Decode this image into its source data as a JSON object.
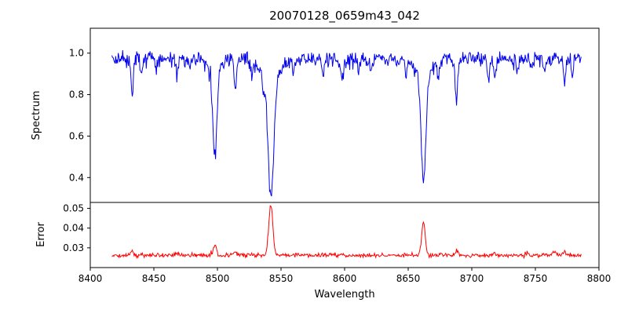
{
  "chart_data": {
    "type": "line",
    "title": "20070128_0659m43_042",
    "xlabel": "Wavelength",
    "x_range": [
      8400,
      8800
    ],
    "x_ticks": [
      8400,
      8450,
      8500,
      8550,
      8600,
      8650,
      8700,
      8750,
      8800
    ],
    "x_tick_labels": [
      "8400",
      "8450",
      "8500",
      "8550",
      "8600",
      "8650",
      "8700",
      "8750",
      "8800"
    ],
    "data_x_start": 8417,
    "data_x_end": 8786,
    "sample_step": 0.5,
    "noise_seed": 42,
    "grid": false,
    "legend": "none",
    "subplots": [
      {
        "name": "spectrum",
        "ylabel": "Spectrum",
        "ylim": [
          0.28,
          1.12
        ],
        "y_ticks": [
          0.4,
          0.6,
          0.8,
          1.0
        ],
        "y_tick_labels": [
          "0.4",
          "0.6",
          "0.8",
          "1.0"
        ],
        "color": "#0000ee",
        "baseline": 0.972,
        "noise_sigma": 0.017,
        "down_spike_prob": 0.035,
        "down_spike_max": 0.05,
        "absorption_lines": [
          {
            "center": 8498,
            "depth": 0.42,
            "sigma": 1.6
          },
          {
            "center": 8498,
            "depth": 0.05,
            "sigma": 5.0
          },
          {
            "center": 8542,
            "depth": 0.55,
            "sigma": 2.2
          },
          {
            "center": 8542,
            "depth": 0.11,
            "sigma": 7.0
          },
          {
            "center": 8662,
            "depth": 0.5,
            "sigma": 1.8
          },
          {
            "center": 8662,
            "depth": 0.09,
            "sigma": 6.0
          },
          {
            "center": 8433,
            "depth": 0.16,
            "sigma": 1.0
          },
          {
            "center": 8440,
            "depth": 0.07,
            "sigma": 0.8
          },
          {
            "center": 8452,
            "depth": 0.05,
            "sigma": 0.8
          },
          {
            "center": 8468,
            "depth": 0.09,
            "sigma": 0.9
          },
          {
            "center": 8478,
            "depth": 0.05,
            "sigma": 0.8
          },
          {
            "center": 8514,
            "depth": 0.15,
            "sigma": 1.0
          },
          {
            "center": 8527,
            "depth": 0.07,
            "sigma": 0.8
          },
          {
            "center": 8536,
            "depth": 0.06,
            "sigma": 0.8
          },
          {
            "center": 8560,
            "depth": 0.05,
            "sigma": 0.8
          },
          {
            "center": 8583,
            "depth": 0.09,
            "sigma": 0.9
          },
          {
            "center": 8598,
            "depth": 0.11,
            "sigma": 1.0
          },
          {
            "center": 8611,
            "depth": 0.07,
            "sigma": 0.8
          },
          {
            "center": 8621,
            "depth": 0.05,
            "sigma": 0.8
          },
          {
            "center": 8648,
            "depth": 0.07,
            "sigma": 0.8
          },
          {
            "center": 8674,
            "depth": 0.08,
            "sigma": 0.9
          },
          {
            "center": 8688,
            "depth": 0.19,
            "sigma": 1.1
          },
          {
            "center": 8713,
            "depth": 0.09,
            "sigma": 0.9
          },
          {
            "center": 8718,
            "depth": 0.09,
            "sigma": 0.9
          },
          {
            "center": 8736,
            "depth": 0.07,
            "sigma": 0.8
          },
          {
            "center": 8747,
            "depth": 0.05,
            "sigma": 0.8
          },
          {
            "center": 8757,
            "depth": 0.06,
            "sigma": 0.8
          },
          {
            "center": 8773,
            "depth": 0.12,
            "sigma": 1.0
          },
          {
            "center": 8779,
            "depth": 0.08,
            "sigma": 0.8
          }
        ],
        "key_features": [
          {
            "center": 8498,
            "min_value": 0.51
          },
          {
            "center": 8542,
            "min_value": 0.33
          },
          {
            "center": 8662,
            "min_value": 0.37
          }
        ]
      },
      {
        "name": "error",
        "ylabel": "Error",
        "ylim": [
          0.02,
          0.053
        ],
        "y_ticks": [
          0.03,
          0.04,
          0.05
        ],
        "y_tick_labels": [
          "0.03",
          "0.04",
          "0.05"
        ],
        "color": "#ff0000",
        "baseline": 0.0262,
        "noise_sigma": 0.0005,
        "up_spike_prob": 0.03,
        "up_spike_max": 0.0015,
        "spikes": [
          {
            "center": 8498,
            "height": 0.0045,
            "sigma": 1.3
          },
          {
            "center": 8542,
            "height": 0.0253,
            "sigma": 1.6
          },
          {
            "center": 8662,
            "height": 0.017,
            "sigma": 1.4
          },
          {
            "center": 8433,
            "height": 0.002,
            "sigma": 1.2
          },
          {
            "center": 8468,
            "height": 0.0012,
            "sigma": 1.0
          },
          {
            "center": 8514,
            "height": 0.0018,
            "sigma": 1.2
          },
          {
            "center": 8598,
            "height": 0.001,
            "sigma": 1.0
          },
          {
            "center": 8688,
            "height": 0.002,
            "sigma": 1.2
          },
          {
            "center": 8718,
            "height": 0.0012,
            "sigma": 1.0
          },
          {
            "center": 8765,
            "height": 0.0018,
            "sigma": 1.5
          },
          {
            "center": 8773,
            "height": 0.002,
            "sigma": 1.2
          }
        ],
        "key_features": [
          {
            "center": 8498,
            "peak_value": 0.031
          },
          {
            "center": 8542,
            "peak_value": 0.051
          },
          {
            "center": 8662,
            "peak_value": 0.044
          }
        ]
      }
    ]
  }
}
